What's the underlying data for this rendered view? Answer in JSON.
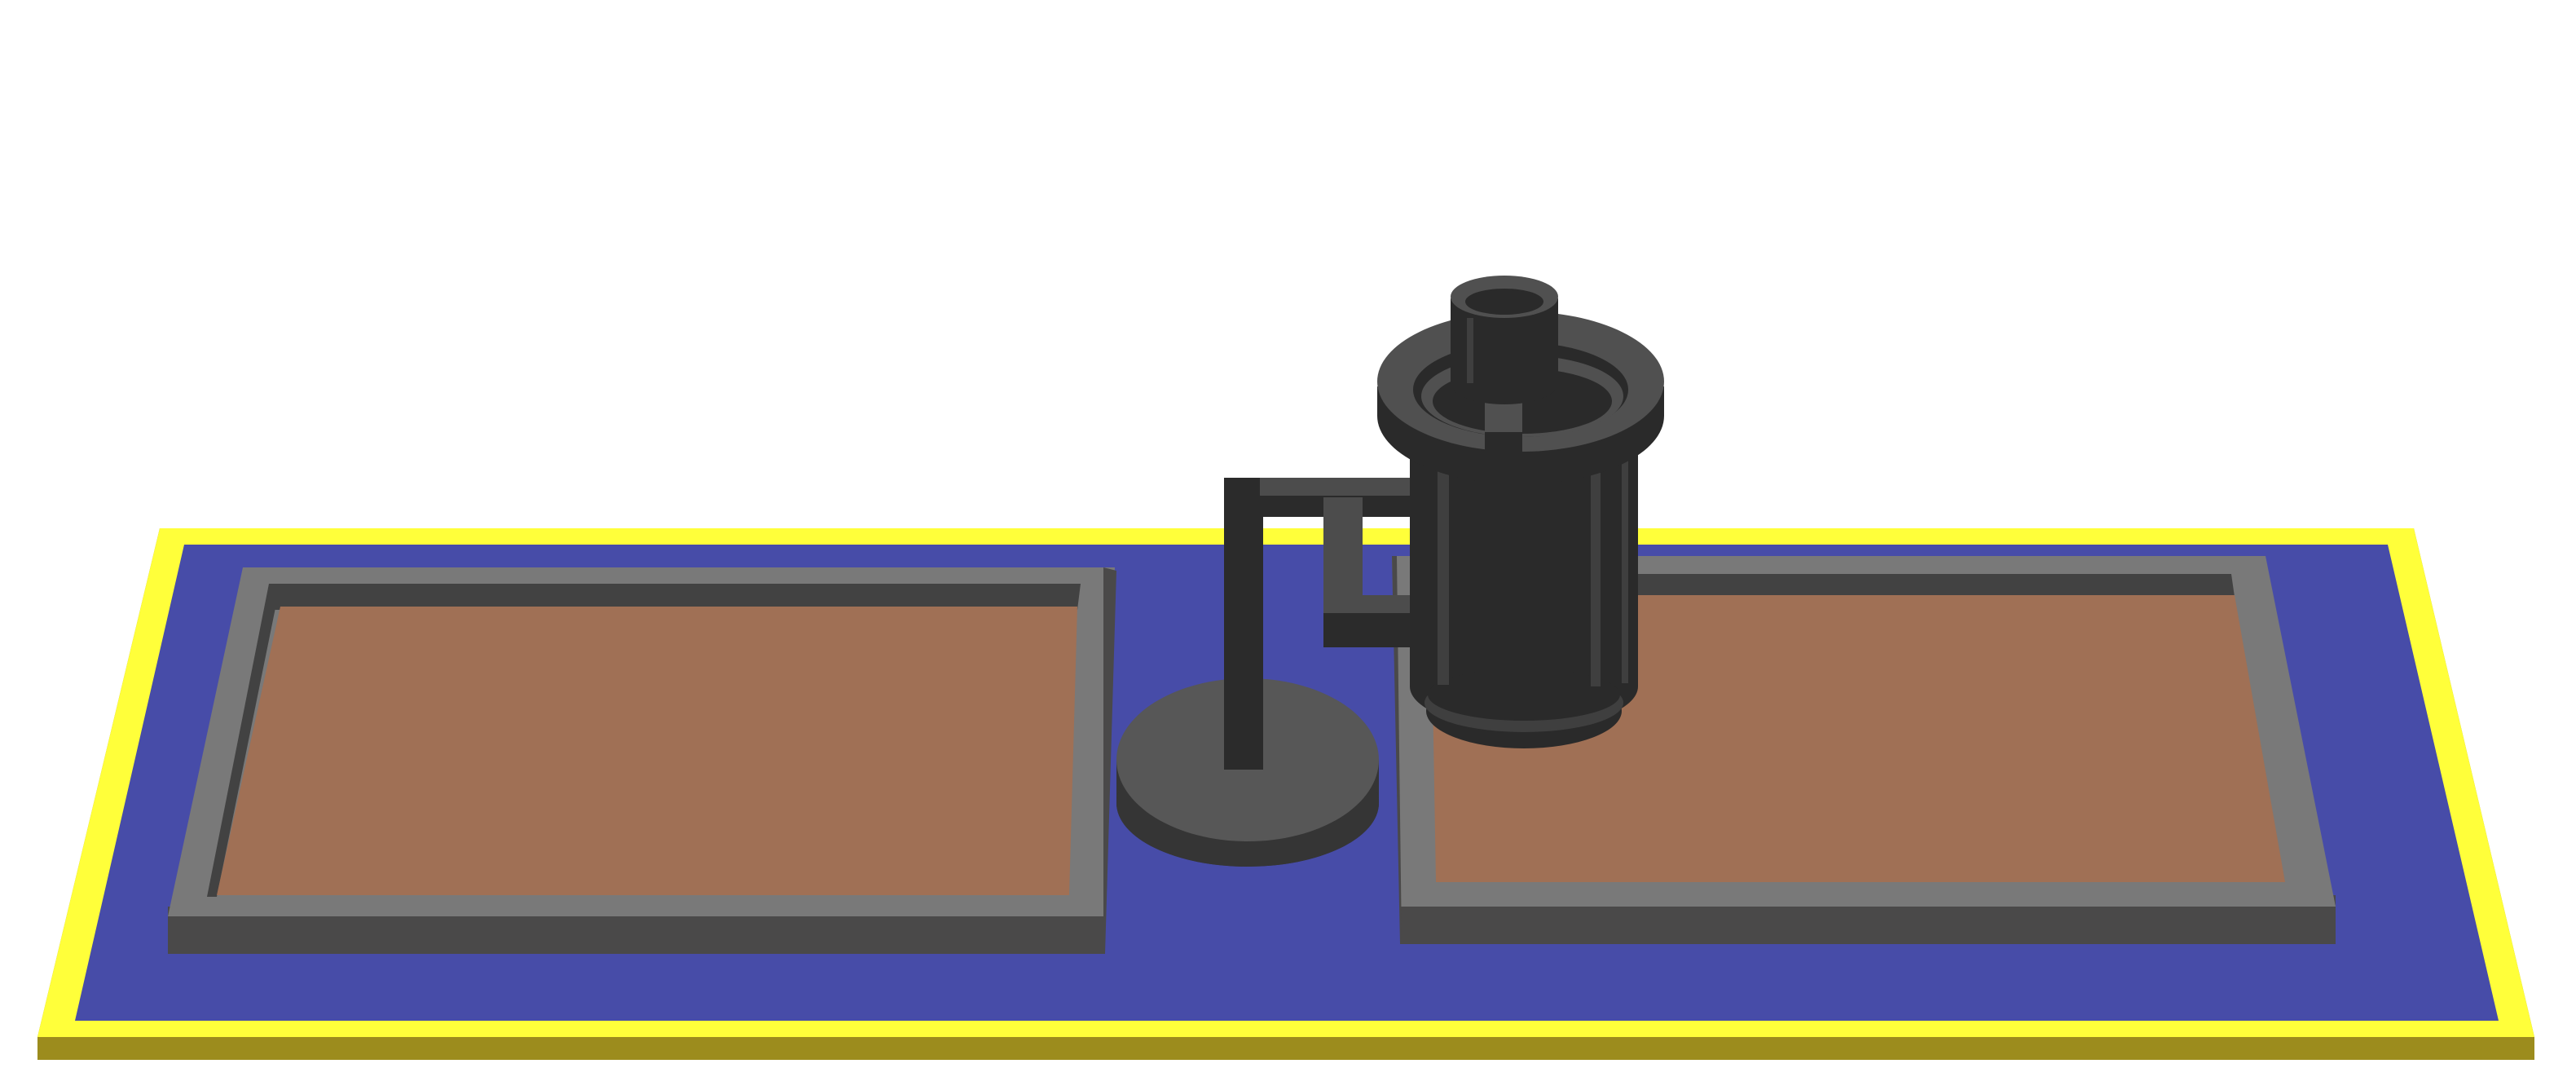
{
  "scene": {
    "background": "#ffffff",
    "colors": {
      "board_top": "#474ca8",
      "board_rim_top": "#ffff3a",
      "board_rim_side": "#9c8c1d",
      "tray_frame_top": "#797979",
      "tray_frame_side": "#4a4949",
      "tray_inner_shadow": "#424242",
      "soil": "#a07055",
      "base_top": "#575757",
      "base_side": "#353535",
      "post": "#2b2b2b",
      "post_light": "#4c4c4c",
      "container_body": "#2a2a2a",
      "container_highlight": "#3f3f3f",
      "container_rim": "#505050"
    },
    "objects": [
      {
        "name": "game-board",
        "icon": "blue-rectangle-with-yellow-border"
      },
      {
        "name": "left-tray",
        "icon": "grey-frame-with-brown-soil"
      },
      {
        "name": "right-tray",
        "icon": "grey-frame-with-brown-soil"
      },
      {
        "name": "round-base",
        "icon": "dark-grey-disc"
      },
      {
        "name": "support-arm",
        "icon": "dark-grey-bracket"
      },
      {
        "name": "cylinder-container",
        "icon": "dark-cylinder-with-rings"
      }
    ]
  }
}
